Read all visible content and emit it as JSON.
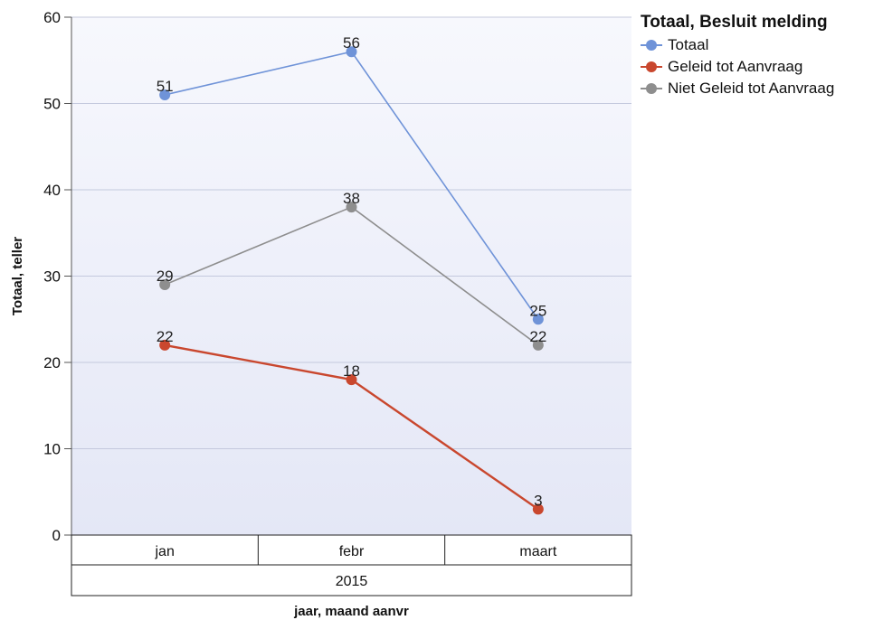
{
  "chart_data": {
    "type": "line",
    "categories": [
      "jan",
      "febr",
      "maart"
    ],
    "group_label": "2015",
    "xlabel": "jaar, maand aanvr",
    "ylabel": "Totaal, teller",
    "ylim": [
      0,
      60
    ],
    "yticks": [
      0,
      10,
      20,
      30,
      40,
      50,
      60
    ],
    "grid": true,
    "legend_title": "Totaal, Besluit melding",
    "legend_position": "right",
    "series": [
      {
        "name": "Totaal",
        "color": "#6f93d8",
        "values": [
          51,
          56,
          25
        ]
      },
      {
        "name": "Geleid tot Aanvraag",
        "color": "#c9472e",
        "values": [
          22,
          18,
          3
        ]
      },
      {
        "name": "Niet Geleid tot Aanvraag",
        "color": "#8e8e8e",
        "values": [
          29,
          38,
          22
        ]
      }
    ]
  }
}
